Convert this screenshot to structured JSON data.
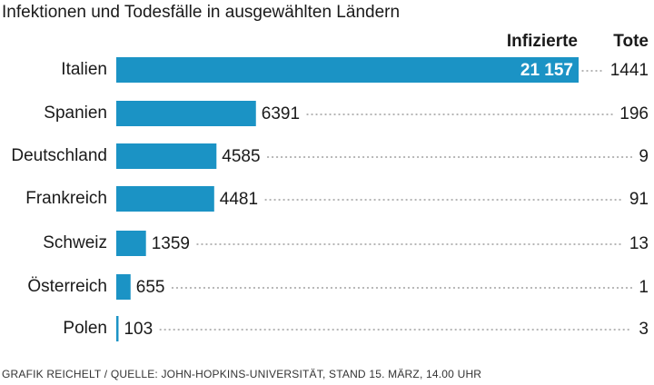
{
  "chart_data": {
    "type": "bar",
    "title": "Infektionen und Todesfälle in ausgewählten Ländern",
    "categories": [
      "Italien",
      "Spanien",
      "Deutschland",
      "Frankreich",
      "Schweiz",
      "Österreich",
      "Polen"
    ],
    "series": [
      {
        "name": "Infizierte",
        "color": "#1b93c5",
        "values": [
          21157,
          6391,
          4585,
          4481,
          1359,
          655,
          103
        ],
        "value_labels": [
          "21 157",
          "6391",
          "4585",
          "4481",
          "1359",
          "655",
          "103"
        ]
      },
      {
        "name": "Tote",
        "values": [
          1441,
          196,
          9,
          91,
          13,
          1,
          3
        ]
      }
    ],
    "source": "GRAFIK REICHELT / QUELLE: JOHN-HOPKINS-UNIVERSITÄT, STAND 15. MÄRZ, 14.00 UHR"
  }
}
